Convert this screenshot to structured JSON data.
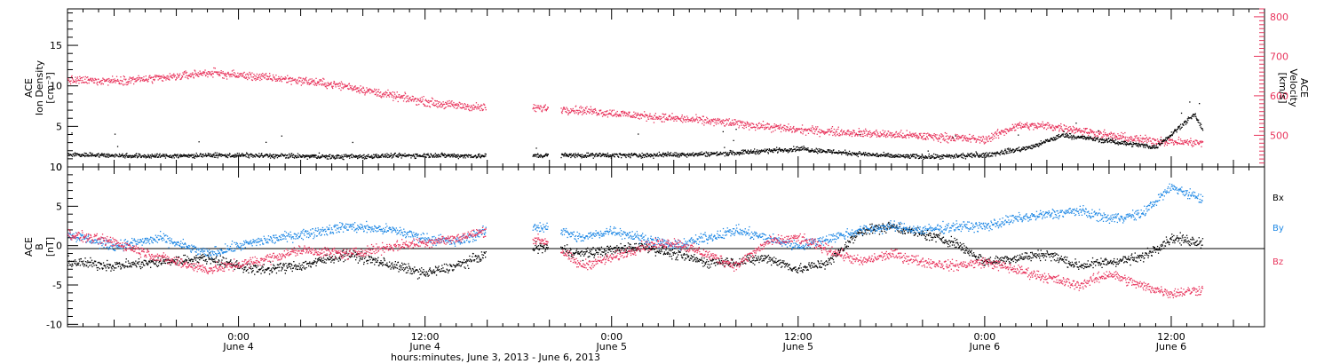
{
  "colors": {
    "black": "#000000",
    "pink": "#e8345c",
    "blue": "#1e88e5"
  },
  "footer": {
    "xlabel": "hours:minutes, June  3, 2013 - June  6, 2013",
    "time_ticks": [
      {
        "time": "0:00",
        "date": "June 4",
        "hour": 24
      },
      {
        "time": "12:00",
        "date": "June 4",
        "hour": 36
      },
      {
        "time": "0:00",
        "date": "June 5",
        "hour": 48
      },
      {
        "time": "12:00",
        "date": "June 5",
        "hour": 60
      },
      {
        "time": "0:00",
        "date": "June 6",
        "hour": 72
      },
      {
        "time": "12:00",
        "date": "June 6",
        "hour": 84
      }
    ]
  },
  "chart_data": [
    {
      "type": "scatter",
      "panel": "plasma",
      "x_range_hours": [
        13,
        90
      ],
      "data_gaps_hours": [
        [
          39.9,
          42.9
        ],
        [
          43.9,
          44.7
        ]
      ],
      "ylabel_left": [
        "ACE",
        "Ion Density",
        "[cm⁻³]"
      ],
      "ylabel_right": [
        "ACE",
        "Velocity",
        "[km/s]"
      ],
      "ylim_left": [
        0,
        19.5
      ],
      "yticks_left": [
        "0",
        "5",
        "10",
        "15"
      ],
      "ylim_right": [
        420,
        820
      ],
      "yticks_right": [
        "500",
        "600",
        "700",
        "800"
      ],
      "series": [
        {
          "axis": "left",
          "color": "#000000",
          "x": [
            13,
            18,
            24,
            30,
            36,
            40,
            45,
            50,
            55,
            60,
            63,
            66,
            69,
            72,
            75,
            77,
            79,
            81,
            83,
            84.5,
            85.5,
            86
          ],
          "y": [
            1.6,
            1.4,
            1.5,
            1.3,
            1.5,
            1.4,
            1.5,
            1.5,
            1.7,
            2.3,
            1.8,
            1.4,
            1.3,
            1.5,
            2.5,
            4.0,
            3.5,
            3.0,
            2.5,
            5.0,
            6.5,
            4.5
          ]
        },
        {
          "axis": "right",
          "color": "#e8345c",
          "x": [
            13,
            16,
            19,
            22,
            25,
            28,
            31,
            34,
            37,
            40,
            44,
            46,
            50,
            55,
            60,
            65,
            70,
            72,
            74,
            76,
            78,
            80,
            82,
            84,
            86
          ],
          "y": [
            640,
            640,
            645,
            660,
            650,
            640,
            625,
            600,
            580,
            570,
            570,
            565,
            550,
            535,
            515,
            505,
            495,
            490,
            525,
            525,
            515,
            500,
            490,
            485,
            482
          ]
        }
      ]
    },
    {
      "type": "scatter",
      "panel": "magnetic",
      "x_range_hours": [
        13,
        90
      ],
      "data_gaps_hours": [
        [
          39.9,
          42.9
        ],
        [
          43.9,
          44.7
        ]
      ],
      "ylabel": [
        "ACE",
        "B",
        "[nT]"
      ],
      "ylim": [
        -10.3,
        10
      ],
      "yticks": [
        "-10",
        "-5",
        "0",
        "5",
        "10"
      ],
      "series": [
        {
          "name": "Bx",
          "color": "#000000",
          "x": [
            13,
            16,
            19,
            22,
            25,
            28,
            31,
            34,
            36,
            38,
            40,
            44,
            46,
            48,
            50,
            52,
            54,
            56,
            58,
            60,
            62,
            64,
            66,
            68,
            70,
            72,
            74,
            76,
            78,
            80,
            82,
            84,
            86
          ],
          "y": [
            -2.0,
            -2.5,
            -2.0,
            -1.5,
            -3.0,
            -2.5,
            -1.0,
            -2.5,
            -3.5,
            -2.5,
            -1.0,
            0.0,
            -1.0,
            -0.5,
            0.0,
            -1.0,
            -2.0,
            -2.0,
            -1.5,
            -3.0,
            -2.0,
            2.0,
            2.5,
            1.5,
            0.5,
            -2.0,
            -1.5,
            -1.0,
            -2.5,
            -2.0,
            -1.5,
            1.0,
            0.5
          ]
        },
        {
          "name": "By",
          "color": "#1e88e5",
          "x": [
            13,
            16,
            19,
            22,
            25,
            28,
            31,
            34,
            36,
            38,
            40,
            44,
            46,
            48,
            50,
            52,
            54,
            56,
            58,
            60,
            62,
            64,
            66,
            68,
            70,
            72,
            74,
            76,
            78,
            80,
            82,
            84,
            86
          ],
          "y": [
            1.5,
            0.0,
            1.0,
            -1.0,
            0.5,
            1.5,
            2.5,
            2.0,
            1.0,
            0.5,
            2.0,
            2.5,
            1.0,
            2.0,
            1.0,
            0.0,
            1.0,
            2.0,
            1.0,
            0.0,
            1.0,
            2.0,
            2.5,
            2.0,
            2.5,
            2.5,
            3.5,
            4.0,
            4.5,
            3.5,
            4.0,
            7.5,
            6.0
          ]
        },
        {
          "name": "Bz",
          "color": "#e8345c",
          "x": [
            13,
            16,
            19,
            22,
            25,
            28,
            31,
            34,
            36,
            38,
            40,
            44,
            46,
            48,
            50,
            52,
            54,
            56,
            58,
            60,
            62,
            64,
            66,
            68,
            70,
            72,
            74,
            76,
            78,
            80,
            82,
            84,
            86
          ],
          "y": [
            1.5,
            0.5,
            -1.5,
            -3.0,
            -2.0,
            -0.5,
            -1.0,
            0.0,
            0.5,
            1.0,
            2.0,
            0.5,
            -2.5,
            -1.5,
            0.0,
            0.5,
            -1.0,
            -2.5,
            0.5,
            1.0,
            -0.5,
            -2.0,
            -1.0,
            -2.0,
            -2.5,
            -2.0,
            -3.0,
            -4.0,
            -5.0,
            -3.5,
            -5.0,
            -6.0,
            -5.5
          ]
        }
      ]
    }
  ]
}
